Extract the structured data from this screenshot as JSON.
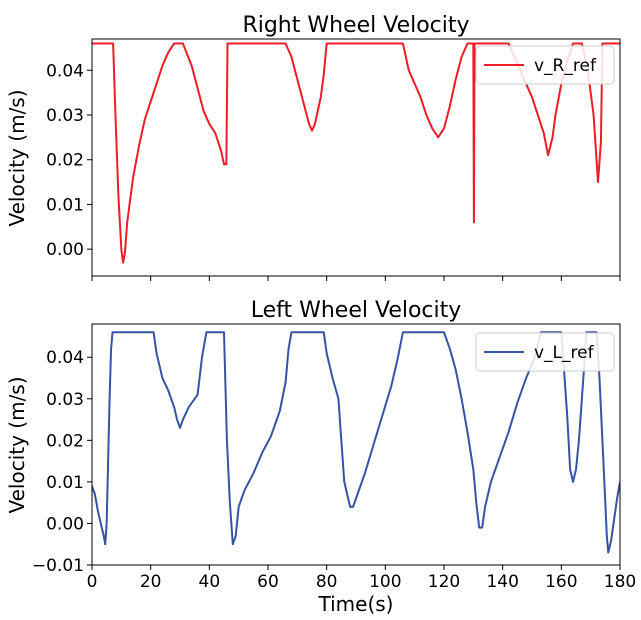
{
  "chart_data": [
    {
      "type": "line",
      "title": "Right Wheel Velocity",
      "xlabel": "",
      "ylabel": "Velocity (m/s)",
      "xlim": [
        0,
        180
      ],
      "ylim": [
        -0.006,
        0.047
      ],
      "xticks": [
        0,
        20,
        40,
        60,
        80,
        100,
        120,
        140,
        160,
        180
      ],
      "show_x_tick_labels": false,
      "yticks": [
        0.0,
        0.01,
        0.02,
        0.03,
        0.04
      ],
      "ytick_labels": [
        "0.00",
        "0.01",
        "0.02",
        "0.03",
        "0.04"
      ],
      "grid": false,
      "legend_position": "top-right",
      "series": [
        {
          "name": "v_R_ref",
          "color": "#ee1c24",
          "points": [
            [
              0,
              0.046
            ],
            [
              7,
              0.046
            ],
            [
              7.2,
              0.046
            ],
            [
              8,
              0.03
            ],
            [
              9,
              0.012
            ],
            [
              10,
              0.0
            ],
            [
              10.6,
              -0.003
            ],
            [
              11.2,
              -0.001
            ],
            [
              12,
              0.006
            ],
            [
              14,
              0.016
            ],
            [
              16,
              0.023
            ],
            [
              18,
              0.029
            ],
            [
              20,
              0.033
            ],
            [
              22,
              0.037
            ],
            [
              24,
              0.041
            ],
            [
              26,
              0.044
            ],
            [
              28,
              0.046
            ],
            [
              31,
              0.046
            ],
            [
              34,
              0.041
            ],
            [
              36,
              0.036
            ],
            [
              38,
              0.031
            ],
            [
              40,
              0.028
            ],
            [
              42,
              0.026
            ],
            [
              44,
              0.022
            ],
            [
              45,
              0.019
            ],
            [
              45.8,
              0.019
            ],
            [
              46.2,
              0.046
            ],
            [
              66,
              0.046
            ],
            [
              68,
              0.043
            ],
            [
              70,
              0.038
            ],
            [
              72,
              0.033
            ],
            [
              74,
              0.028
            ],
            [
              75,
              0.0265
            ],
            [
              76,
              0.028
            ],
            [
              78,
              0.034
            ],
            [
              79,
              0.039
            ],
            [
              80,
              0.046
            ],
            [
              106,
              0.046
            ],
            [
              108,
              0.04
            ],
            [
              110,
              0.037
            ],
            [
              112,
              0.034
            ],
            [
              114,
              0.03
            ],
            [
              116,
              0.027
            ],
            [
              118,
              0.025
            ],
            [
              120,
              0.027
            ],
            [
              122,
              0.032
            ],
            [
              124,
              0.038
            ],
            [
              126,
              0.043
            ],
            [
              128,
              0.046
            ],
            [
              130,
              0.046
            ],
            [
              130.2,
              0.006
            ],
            [
              130.4,
              0.046
            ],
            [
              142,
              0.046
            ],
            [
              144,
              0.043
            ],
            [
              146,
              0.04
            ],
            [
              148,
              0.037
            ],
            [
              150,
              0.034
            ],
            [
              152,
              0.03
            ],
            [
              154,
              0.026
            ],
            [
              155.5,
              0.021
            ],
            [
              157,
              0.025
            ],
            [
              158,
              0.03
            ],
            [
              160,
              0.037
            ],
            [
              162,
              0.042
            ],
            [
              164,
              0.046
            ],
            [
              167,
              0.046
            ],
            [
              169,
              0.04
            ],
            [
              171,
              0.03
            ],
            [
              172.5,
              0.015
            ],
            [
              173.5,
              0.024
            ],
            [
              174,
              0.046
            ],
            [
              180,
              0.046
            ]
          ]
        }
      ]
    },
    {
      "type": "line",
      "title": "Left Wheel Velocity",
      "xlabel": "Time(s)",
      "ylabel": "Velocity (m/s)",
      "xlim": [
        0,
        180
      ],
      "ylim": [
        -0.01,
        0.048
      ],
      "xticks": [
        0,
        20,
        40,
        60,
        80,
        100,
        120,
        140,
        160,
        180
      ],
      "xtick_labels": [
        "0",
        "20",
        "40",
        "60",
        "80",
        "100",
        "120",
        "140",
        "160",
        "180"
      ],
      "show_x_tick_labels": true,
      "yticks": [
        -0.01,
        0.0,
        0.01,
        0.02,
        0.03,
        0.04
      ],
      "ytick_labels": [
        "−0.01",
        "0.00",
        "0.01",
        "0.02",
        "0.03",
        "0.04"
      ],
      "grid": false,
      "legend_position": "top-right",
      "series": [
        {
          "name": "v_L_ref",
          "color": "#3653a4",
          "points": [
            [
              0,
              0.009
            ],
            [
              1,
              0.007
            ],
            [
              2,
              0.003
            ],
            [
              3,
              0.0
            ],
            [
              4,
              -0.003
            ],
            [
              4.5,
              -0.005
            ],
            [
              5,
              0.0
            ],
            [
              5.5,
              0.015
            ],
            [
              6,
              0.03
            ],
            [
              6.5,
              0.042
            ],
            [
              7,
              0.046
            ],
            [
              21,
              0.046
            ],
            [
              22,
              0.041
            ],
            [
              23,
              0.038
            ],
            [
              24,
              0.035
            ],
            [
              26,
              0.032
            ],
            [
              28,
              0.028
            ],
            [
              29,
              0.025
            ],
            [
              30,
              0.023
            ],
            [
              31,
              0.025
            ],
            [
              33,
              0.028
            ],
            [
              36,
              0.031
            ],
            [
              37.5,
              0.04
            ],
            [
              39,
              0.046
            ],
            [
              45,
              0.046
            ],
            [
              46,
              0.02
            ],
            [
              47,
              0.005
            ],
            [
              48,
              -0.005
            ],
            [
              49,
              -0.003
            ],
            [
              50,
              0.004
            ],
            [
              52,
              0.008
            ],
            [
              55,
              0.012
            ],
            [
              58,
              0.017
            ],
            [
              61,
              0.021
            ],
            [
              64,
              0.027
            ],
            [
              66,
              0.034
            ],
            [
              67,
              0.042
            ],
            [
              68,
              0.046
            ],
            [
              79,
              0.046
            ],
            [
              80,
              0.041
            ],
            [
              82,
              0.035
            ],
            [
              84,
              0.03
            ],
            [
              85,
              0.02
            ],
            [
              86,
              0.01
            ],
            [
              87,
              0.007
            ],
            [
              88,
              0.004
            ],
            [
              89,
              0.004
            ],
            [
              90,
              0.006
            ],
            [
              93,
              0.012
            ],
            [
              96,
              0.019
            ],
            [
              99,
              0.026
            ],
            [
              102,
              0.033
            ],
            [
              104,
              0.039
            ],
            [
              106,
              0.046
            ],
            [
              120,
              0.046
            ],
            [
              122,
              0.042
            ],
            [
              124,
              0.037
            ],
            [
              126,
              0.03
            ],
            [
              128,
              0.022
            ],
            [
              130,
              0.013
            ],
            [
              131,
              0.005
            ],
            [
              132,
              -0.001
            ],
            [
              133,
              -0.001
            ],
            [
              134,
              0.004
            ],
            [
              136,
              0.01
            ],
            [
              139,
              0.016
            ],
            [
              142,
              0.022
            ],
            [
              145,
              0.029
            ],
            [
              148,
              0.035
            ],
            [
              151,
              0.04
            ],
            [
              153,
              0.046
            ],
            [
              160,
              0.046
            ],
            [
              161,
              0.036
            ],
            [
              162,
              0.026
            ],
            [
              163,
              0.013
            ],
            [
              164,
              0.01
            ],
            [
              165,
              0.013
            ],
            [
              166,
              0.02
            ],
            [
              167,
              0.03
            ],
            [
              168,
              0.04
            ],
            [
              168.5,
              0.046
            ],
            [
              172,
              0.046
            ],
            [
              173,
              0.035
            ],
            [
              174,
              0.02
            ],
            [
              175,
              0.005
            ],
            [
              175.5,
              -0.003
            ],
            [
              176,
              -0.007
            ],
            [
              177,
              -0.004
            ],
            [
              178,
              0.001
            ],
            [
              179,
              0.006
            ],
            [
              180,
              0.01
            ]
          ]
        }
      ]
    }
  ]
}
